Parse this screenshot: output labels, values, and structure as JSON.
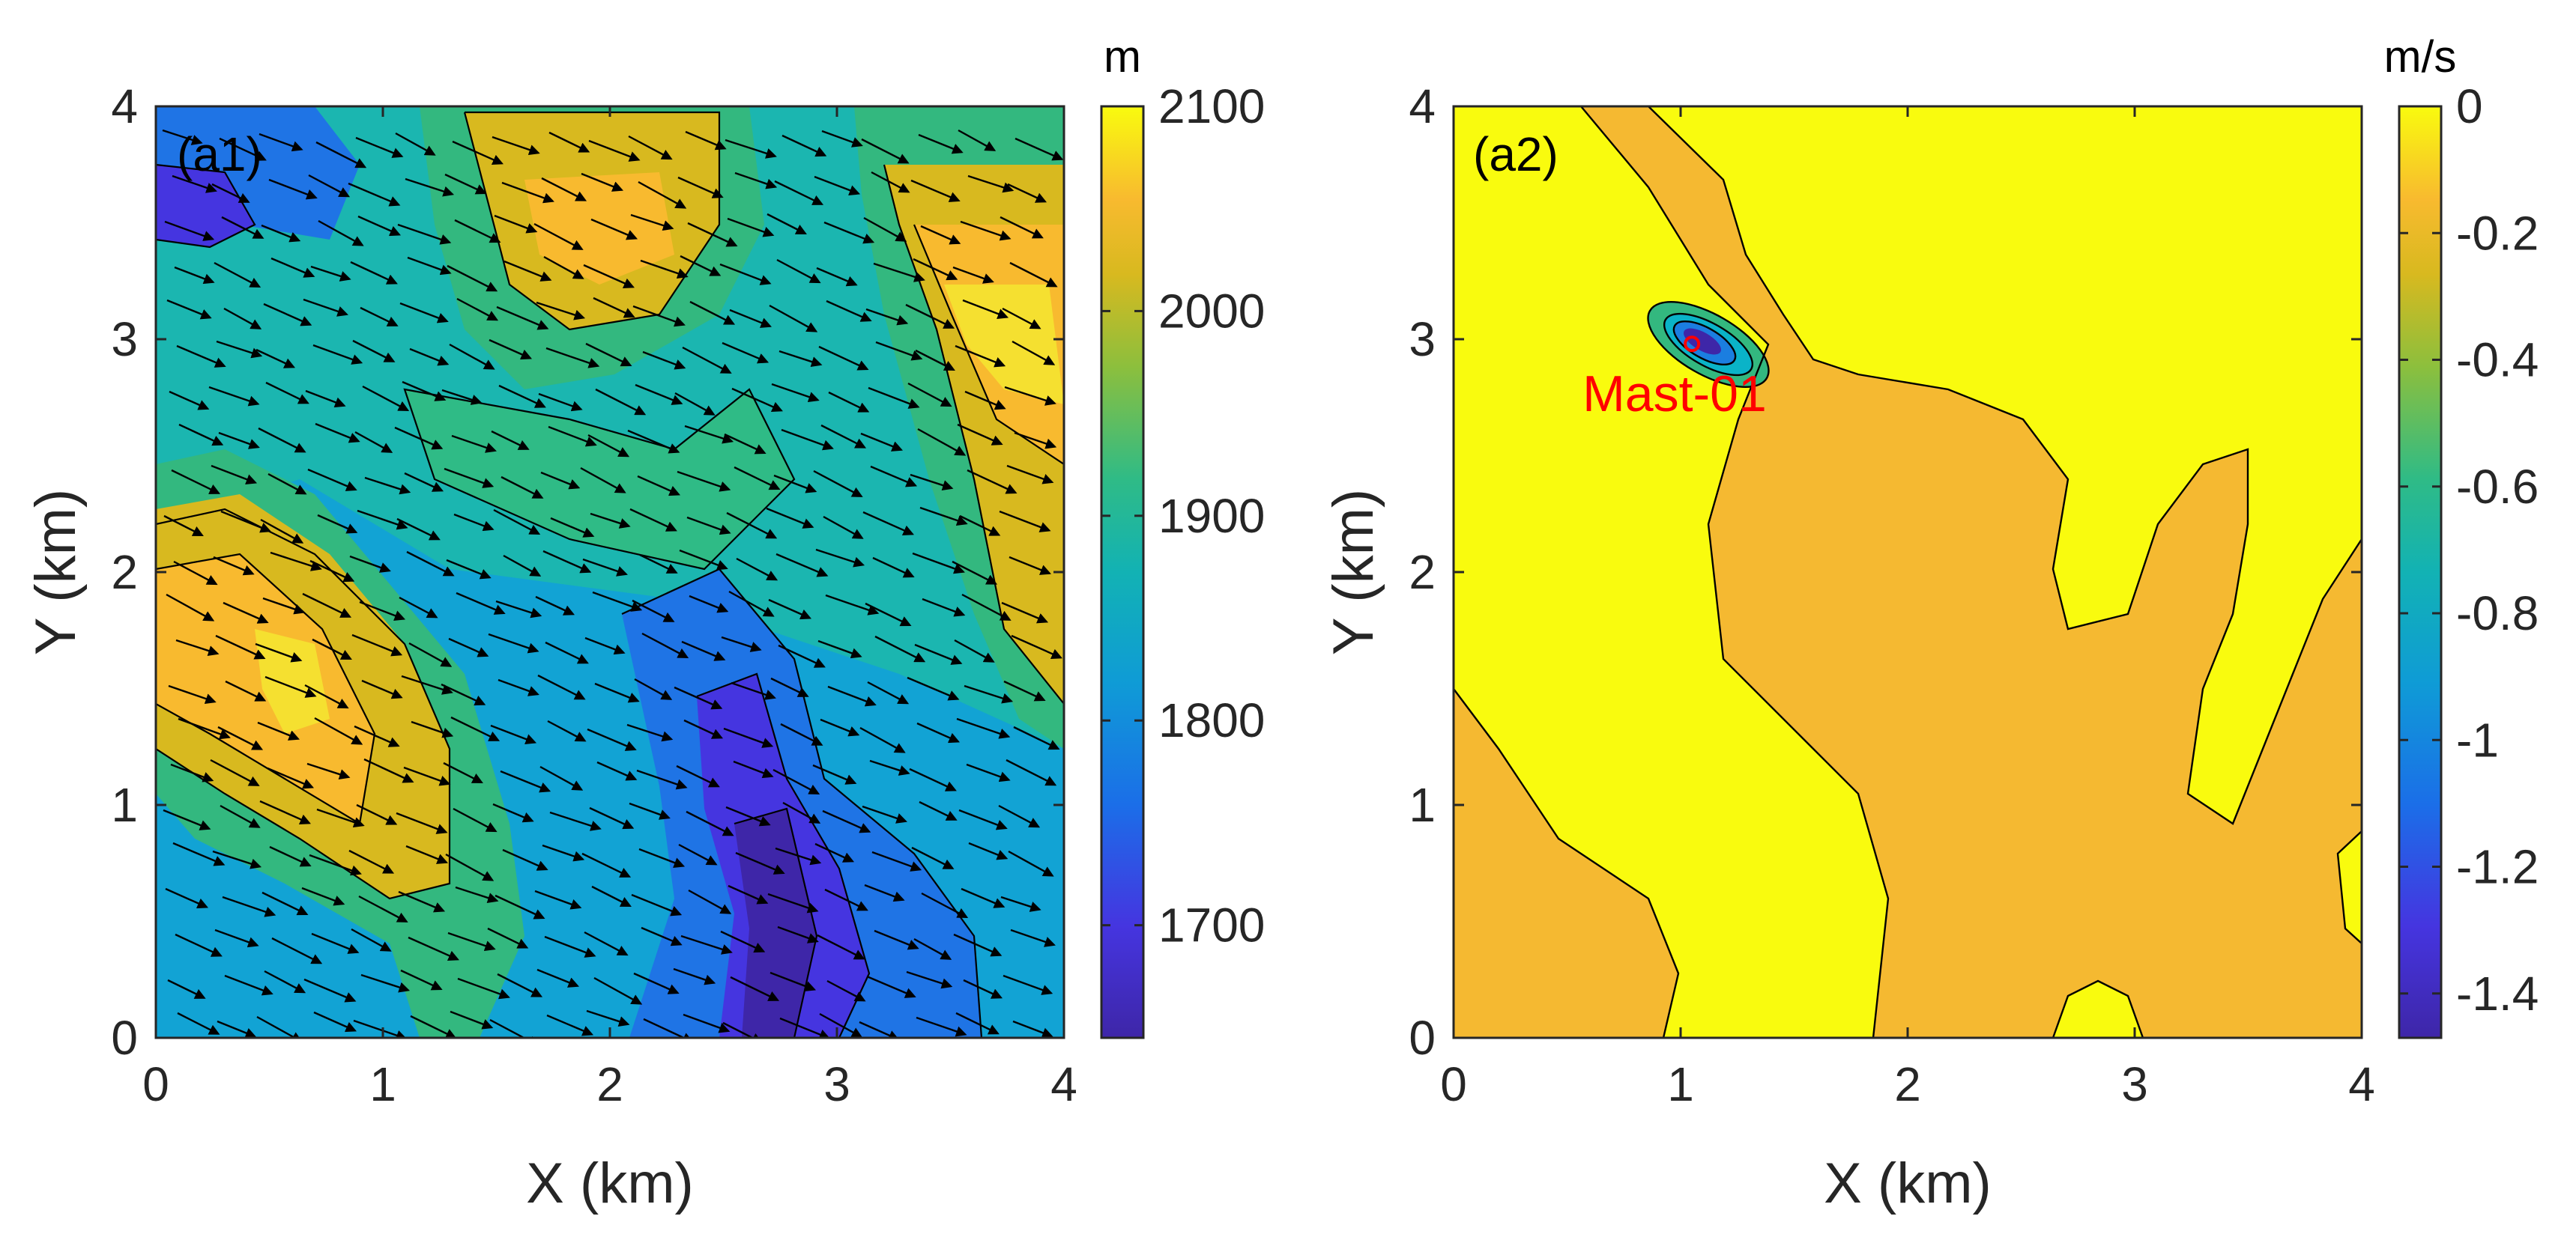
{
  "chart_data": [
    {
      "panel_label": "(a1)",
      "type": "heatmap",
      "xlabel": "X (km)",
      "ylabel": "Y (km)",
      "xlim": [
        0,
        4
      ],
      "ylim": [
        0,
        4
      ],
      "xticks": [
        0,
        1,
        2,
        3,
        4
      ],
      "yticks": [
        0,
        1,
        2,
        3,
        4
      ],
      "colorbar": {
        "unit": "m",
        "range": [
          1645,
          2100
        ],
        "ticks": [
          1700,
          1800,
          1900,
          2000,
          2100
        ]
      },
      "overlay": "wind vector arrows pointing roughly east-south-east",
      "grid": false
    },
    {
      "panel_label": "(a2)",
      "type": "heatmap",
      "xlabel": "X (km)",
      "ylabel": "Y (km)",
      "xlim": [
        0,
        4
      ],
      "ylim": [
        0,
        4
      ],
      "xticks": [
        0,
        1,
        2,
        3,
        4
      ],
      "yticks": [
        0,
        1,
        2,
        3,
        4
      ],
      "colorbar": {
        "unit": "m/s",
        "range": [
          -1.47,
          0
        ],
        "ticks": [
          0,
          -0.2,
          -0.4,
          -0.6,
          -0.8,
          -1,
          -1.2,
          -1.4
        ]
      },
      "annotation": {
        "text": "Mast-01",
        "x": 1.05,
        "y": 2.98
      },
      "grid": false
    }
  ],
  "colors": {
    "parula_top": "#f9fb0e",
    "parula_orange": "#f5b931",
    "parula_green": "#33b87f",
    "parula_cyan": "#0ab3c8",
    "parula_blue": "#1b7ee0",
    "parula_purple": "#3e26a8",
    "annotation": "#ff0000"
  }
}
